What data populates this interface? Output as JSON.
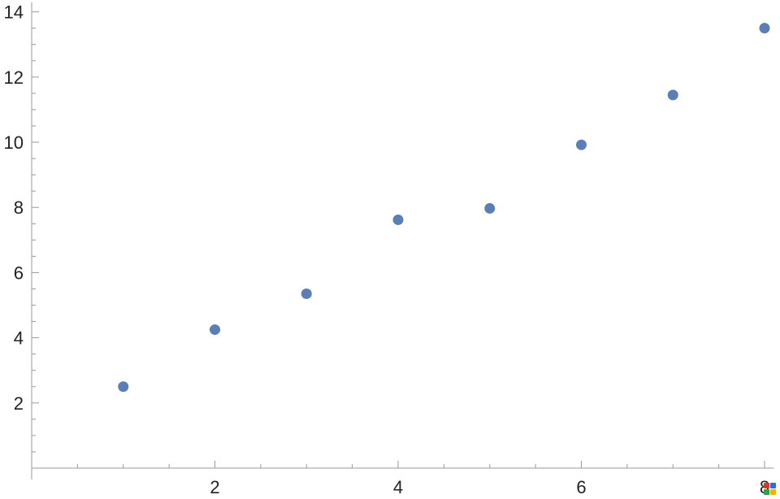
{
  "chart_data": {
    "type": "scatter",
    "title": "",
    "xlabel": "",
    "ylabel": "",
    "xlim": [
      0,
      8.1
    ],
    "ylim": [
      0,
      14.3
    ],
    "x_ticks": [
      2,
      4,
      6,
      8
    ],
    "x_tick_labels": [
      "2",
      "4",
      "6",
      "8"
    ],
    "y_ticks": [
      2,
      4,
      6,
      8,
      10,
      12,
      14
    ],
    "y_tick_labels": [
      "2",
      "4",
      "6",
      "8",
      "10",
      "12",
      "14"
    ],
    "x_minor_step": 0.5,
    "y_minor_step": 0.5,
    "grid": false,
    "series": [
      {
        "color": "#5b7fb5",
        "points": [
          {
            "x": 1,
            "y": 2.5
          },
          {
            "x": 2,
            "y": 4.25
          },
          {
            "x": 3,
            "y": 5.35
          },
          {
            "x": 4,
            "y": 7.62
          },
          {
            "x": 5,
            "y": 7.97
          },
          {
            "x": 6,
            "y": 9.92
          },
          {
            "x": 7,
            "y": 11.45
          },
          {
            "x": 8,
            "y": 13.5
          }
        ]
      }
    ]
  },
  "badge": {
    "icon": "plot-tool-badge-icon",
    "colors": [
      "#d33a2c",
      "#2d6cdf",
      "#2aa14a",
      "#f0b400"
    ]
  }
}
